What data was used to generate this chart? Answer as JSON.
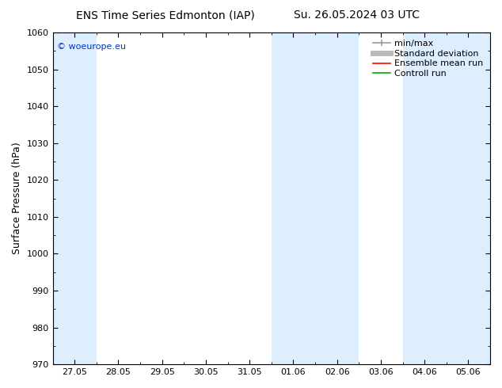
{
  "title_left": "ENS Time Series Edmonton (IAP)",
  "title_right": "Su. 26.05.2024 03 UTC",
  "ylabel": "Surface Pressure (hPa)",
  "ylim": [
    970,
    1060
  ],
  "yticks": [
    970,
    980,
    990,
    1000,
    1010,
    1020,
    1030,
    1040,
    1050,
    1060
  ],
  "xtick_labels": [
    "27.05",
    "28.05",
    "29.05",
    "30.05",
    "31.05",
    "01.06",
    "02.06",
    "03.06",
    "04.06",
    "05.06"
  ],
  "shade_color": "#ddeeff",
  "background_color": "#ffffff",
  "watermark": "© woeurope.eu",
  "watermark_color": "#0033cc",
  "legend_entries": [
    "min/max",
    "Standard deviation",
    "Ensemble mean run",
    "Controll run"
  ],
  "legend_colors_line": [
    "#999999",
    "#bbbbbb",
    "#ff0000",
    "#00aa00"
  ],
  "title_fontsize": 10,
  "axis_label_fontsize": 9,
  "tick_fontsize": 8,
  "legend_fontsize": 8
}
